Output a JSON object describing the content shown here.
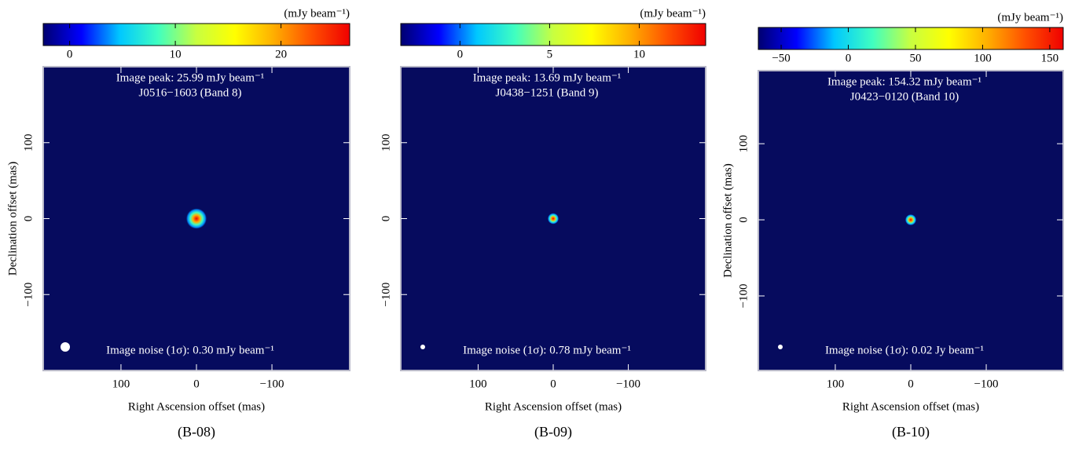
{
  "chart_data": [
    {
      "type": "image",
      "background_color": "#060b5e",
      "colormap": [
        "#000070",
        "#0000ff",
        "#00c8ff",
        "#40ffc0",
        "#c8ff40",
        "#ffff00",
        "#ffb000",
        "#ff5000",
        "#f00000"
      ],
      "colorbar_label": "(mJy beam⁻¹)",
      "clim": [
        -2.5,
        26.5
      ],
      "cticks": [
        0,
        10,
        20
      ],
      "xlabel": "Right Ascension offset (mas)",
      "ylabel": "Declination offset (mas)",
      "xlim": [
        203,
        -203
      ],
      "ylim": [
        -200,
        200
      ],
      "xticks": [
        100,
        0,
        {
          "value": -100,
          "label": "−100"
        }
      ],
      "yticks": [
        100,
        0,
        {
          "value": -100,
          "label": "−100"
        }
      ],
      "annotations": [
        "Image peak:   25.99 mJy beam⁻¹",
        "J0516−1603 (Band 8)",
        "Image noise (1σ): 0.30 mJy beam⁻¹"
      ],
      "caption": "(B-08)"
    },
    {
      "type": "image",
      "background_color": "#060b5e",
      "colormap": [
        "#000070",
        "#0000ff",
        "#00c8ff",
        "#40ffc0",
        "#c8ff40",
        "#ffff00",
        "#ffb000",
        "#ff5000",
        "#f00000"
      ],
      "colorbar_label": "(mJy beam⁻¹)",
      "clim": [
        -3.3,
        13.7
      ],
      "cticks": [
        0,
        5,
        10
      ],
      "xlabel": "Right Ascension offset (mas)",
      "xlim": [
        203,
        -203
      ],
      "ylim": [
        -200,
        200
      ],
      "xticks": [
        100,
        0,
        {
          "value": -100,
          "label": "−100"
        }
      ],
      "yticks": [
        100,
        0,
        {
          "value": -100,
          "label": "−100"
        }
      ],
      "annotations": [
        "Image peak:   13.69 mJy beam⁻¹",
        "J0438−1251 (Band 9)",
        "Image noise (1σ): 0.78 mJy beam⁻¹"
      ],
      "caption": "(B-09)"
    },
    {
      "type": "image",
      "background_color": "#060b5e",
      "colormap": [
        "#000070",
        "#0000ff",
        "#00c8ff",
        "#40ffc0",
        "#c8ff40",
        "#ffff00",
        "#ffb000",
        "#ff5000",
        "#f00000"
      ],
      "colorbar_label": "(mJy beam⁻¹)",
      "clim": [
        -67,
        160
      ],
      "cticks": [
        {
          "value": -50,
          "label": "−50"
        },
        0,
        50,
        100,
        150
      ],
      "xlabel": "Right Ascension offset (mas)",
      "ylabel": "Declination offset (mas)",
      "xlim": [
        202,
        -202
      ],
      "ylim": [
        -198,
        196
      ],
      "xticks": [
        100,
        0,
        {
          "value": -100,
          "label": "−100"
        }
      ],
      "yticks": [
        100,
        0,
        {
          "value": -100,
          "label": "−100"
        }
      ],
      "annotations": [
        "Image peak:  154.32 mJy beam⁻¹",
        "J0423−0120 (Band 10)",
        "Image noise (1σ): 0.02 Jy beam⁻¹"
      ],
      "caption": "(B-10)"
    }
  ]
}
